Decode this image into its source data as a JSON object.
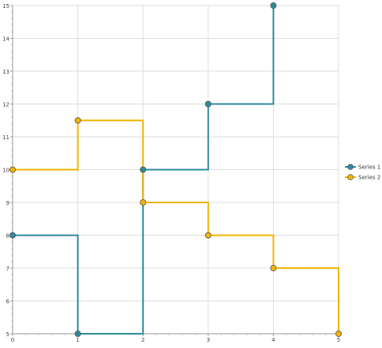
{
  "chart_data": {
    "type": "line",
    "step": "step-after",
    "x_range": [
      0,
      5
    ],
    "y_range": [
      5,
      15
    ],
    "x_ticks": [
      0,
      1,
      2,
      3,
      4,
      5
    ],
    "y_ticks": [
      5,
      6,
      7,
      8,
      9,
      10,
      11,
      12,
      13,
      14,
      15
    ],
    "grid": true,
    "legend_position": "right",
    "series": [
      {
        "name": "Series 1",
        "color": "#2f8a9a",
        "marker_fill": "#2f8a9a",
        "points": [
          {
            "x": 0,
            "y": 8
          },
          {
            "x": 1,
            "y": 5
          },
          {
            "x": 2,
            "y": 10
          },
          {
            "x": 3,
            "y": 12
          },
          {
            "x": 4,
            "y": 15
          }
        ]
      },
      {
        "name": "Series 2",
        "color": "#f0b400",
        "marker_fill": "#f0b400",
        "points": [
          {
            "x": 0,
            "y": 10
          },
          {
            "x": 1,
            "y": 11.5
          },
          {
            "x": 2,
            "y": 9
          },
          {
            "x": 3,
            "y": 8
          },
          {
            "x": 4,
            "y": 7
          },
          {
            "x": 5,
            "y": 5
          }
        ]
      }
    ]
  }
}
